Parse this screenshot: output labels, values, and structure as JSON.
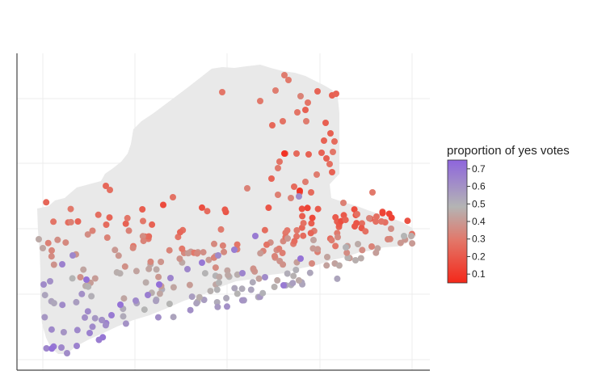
{
  "chart_data": {
    "type": "scatter",
    "subtype": "map-scatter",
    "title": "",
    "xlabel": "",
    "ylabel": "",
    "grid": true,
    "region_fill": "#e9e9e9",
    "colorbar": {
      "title": "proportion of yes votes",
      "ticks": [
        "0.7",
        "0.6",
        "0.5",
        "0.4",
        "0.3",
        "0.2",
        "0.1"
      ],
      "range": [
        0.05,
        0.75
      ],
      "colors": [
        "#f4281a",
        "#e2786a",
        "#b4b4b4",
        "#8e65dd"
      ]
    },
    "note": "Points plotted at approximate map positions (lon/lat-like); values are estimated from color.",
    "points_summary": {
      "min_value": 0.05,
      "max_value": 0.75
    }
  }
}
